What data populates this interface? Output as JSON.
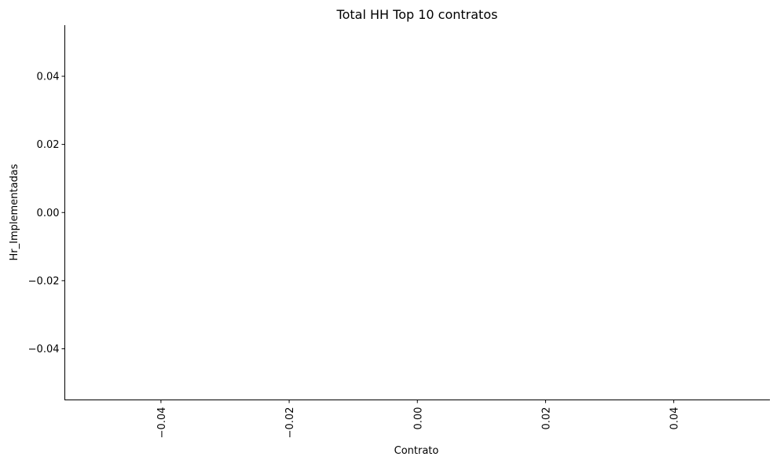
{
  "chart_data": {
    "type": "bar",
    "title": "Total HH Top 10 contratos",
    "xlabel": "Contrato",
    "ylabel": "Hr_Implementadas",
    "categories": [],
    "values": [],
    "xlim": [
      -0.055,
      0.055
    ],
    "ylim": [
      -0.055,
      0.055
    ],
    "xticks": [
      -0.04,
      -0.02,
      0.0,
      0.02,
      0.04
    ],
    "xtick_labels": [
      "−0.04",
      "−0.02",
      "0.00",
      "0.02",
      "0.04"
    ],
    "yticks": [
      -0.04,
      -0.02,
      0.0,
      0.02,
      0.04
    ],
    "ytick_labels": [
      "−0.04",
      "−0.02",
      "0.00",
      "0.02",
      "0.04"
    ],
    "grid": false,
    "spines": [
      "left",
      "bottom"
    ],
    "xtick_rotation": "vertical"
  }
}
